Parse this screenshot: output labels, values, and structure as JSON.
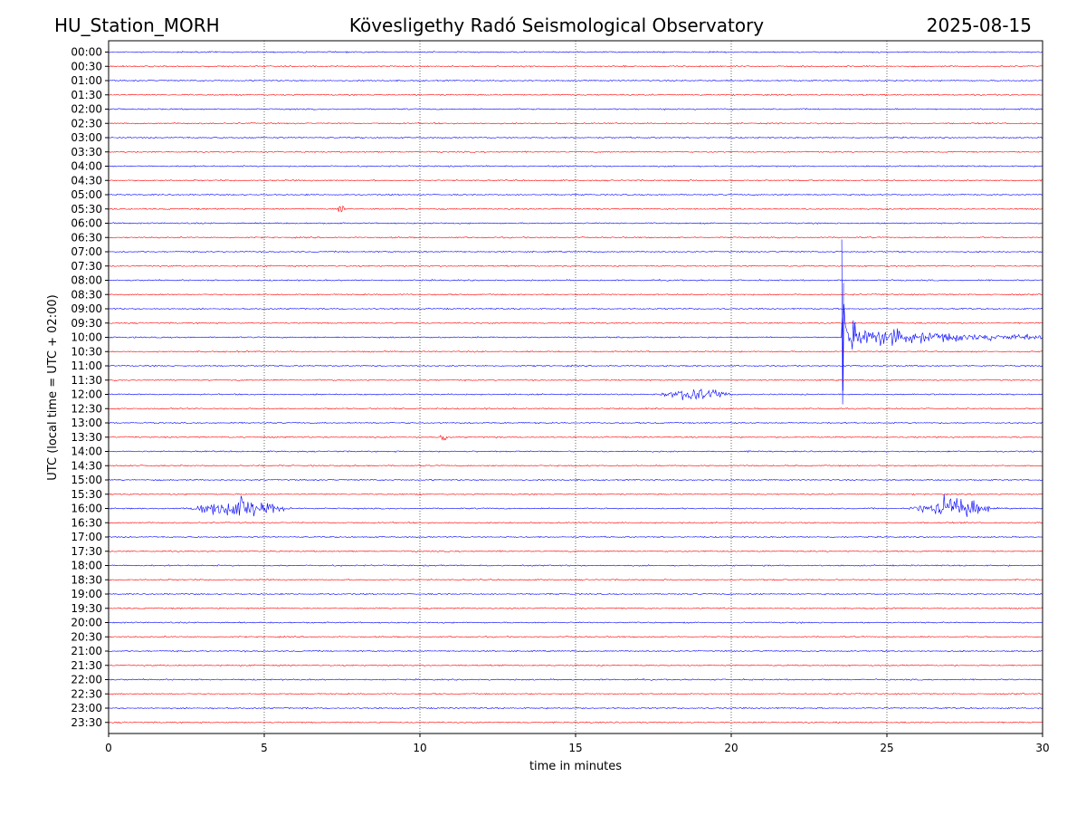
{
  "header": {
    "station": "HU_Station_MORH",
    "observatory": "Kövesligethy Radó Seismological Observatory",
    "date": "2025-08-15"
  },
  "chart_data": {
    "type": "line",
    "title": "Kövesligethy Radó Seismological Observatory",
    "xlabel": "time in minutes",
    "ylabel": "UTC (local time = UTC + 02:00)",
    "xlim": [
      0,
      30
    ],
    "x_ticks": [
      "0",
      "5",
      "10",
      "15",
      "20",
      "25",
      "30"
    ],
    "x_tick_values": [
      0,
      5,
      10,
      15,
      20,
      25,
      30
    ],
    "grid": "vertical dotted at 5-minute intervals",
    "trace_colors": [
      "#0000ff",
      "#ff0000"
    ],
    "rows": [
      "00:00",
      "00:30",
      "01:00",
      "01:30",
      "02:00",
      "02:30",
      "03:00",
      "03:30",
      "04:00",
      "04:30",
      "05:00",
      "05:30",
      "06:00",
      "06:30",
      "07:00",
      "07:30",
      "08:00",
      "08:30",
      "09:00",
      "09:30",
      "10:00",
      "10:30",
      "11:00",
      "11:30",
      "12:00",
      "12:30",
      "13:00",
      "13:30",
      "14:00",
      "14:30",
      "15:00",
      "15:30",
      "16:00",
      "16:30",
      "17:00",
      "17:30",
      "18:00",
      "18:30",
      "19:00",
      "19:30",
      "20:00",
      "20:30",
      "21:00",
      "21:30",
      "22:00",
      "22:30",
      "23:00",
      "23:30"
    ],
    "events": [
      {
        "row": "05:30",
        "start": 7.3,
        "end": 7.6,
        "amplitude": 0.35,
        "type": "burst"
      },
      {
        "row": "10:00",
        "start": 23.55,
        "end": 30,
        "amplitude": 1.0,
        "type": "earthquake"
      },
      {
        "row": "12:00",
        "start": 17.5,
        "end": 20.2,
        "amplitude": 0.3,
        "type": "burst"
      },
      {
        "row": "13:30",
        "start": 10.6,
        "end": 10.9,
        "amplitude": 0.25,
        "type": "burst"
      },
      {
        "row": "16:00",
        "start": 2.4,
        "end": 6.0,
        "amplitude": 0.45,
        "type": "burst"
      },
      {
        "row": "16:00",
        "start": 25.6,
        "end": 28.6,
        "amplitude": 0.6,
        "type": "burst"
      }
    ]
  }
}
